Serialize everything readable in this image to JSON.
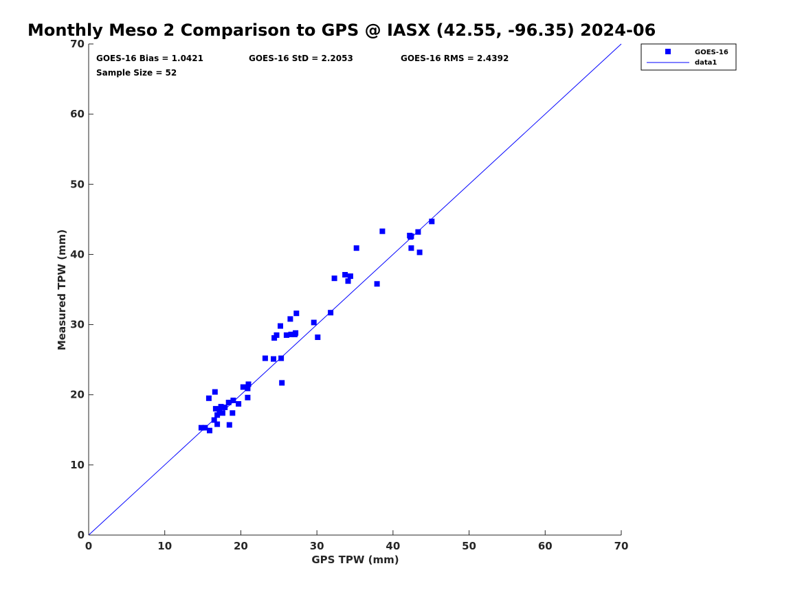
{
  "chart_data": {
    "type": "scatter",
    "title": "Monthly Meso 2 Comparison to GPS @ IASX (42.55, -96.35) 2024-06",
    "xlabel": "GPS TPW (mm)",
    "ylabel": "Measured TPW (mm)",
    "xlim": [
      0,
      70
    ],
    "ylim": [
      0,
      70
    ],
    "xticks": [
      "0",
      "10",
      "20",
      "30",
      "40",
      "50",
      "60",
      "70"
    ],
    "yticks": [
      "0",
      "10",
      "20",
      "30",
      "40",
      "50",
      "60",
      "70"
    ],
    "grid": false,
    "legend_position": "top-right",
    "legend": [
      "GOES-16",
      "data1"
    ],
    "stats": {
      "bias": "GOES-16 Bias = 1.0421",
      "std": "GOES-16 StD = 2.2053",
      "rms": "GOES-16 RMS = 2.4392",
      "sample": "Sample Size = 52"
    },
    "series": [
      {
        "name": "GOES-16",
        "marker": "square",
        "color": "#0000ff",
        "points": [
          [
            14.8,
            15.3
          ],
          [
            15.3,
            15.3
          ],
          [
            15.9,
            14.9
          ],
          [
            15.8,
            19.5
          ],
          [
            16.5,
            16.4
          ],
          [
            16.6,
            20.4
          ],
          [
            16.7,
            18.0
          ],
          [
            16.9,
            17.1
          ],
          [
            16.9,
            15.8
          ],
          [
            17.2,
            17.6
          ],
          [
            17.4,
            18.3
          ],
          [
            17.6,
            17.4
          ],
          [
            17.9,
            18.2
          ],
          [
            18.4,
            18.9
          ],
          [
            18.5,
            15.7
          ],
          [
            18.9,
            17.4
          ],
          [
            19.0,
            19.2
          ],
          [
            19.7,
            18.7
          ],
          [
            20.3,
            21.1
          ],
          [
            20.9,
            20.9
          ],
          [
            20.9,
            19.6
          ],
          [
            21.0,
            21.5
          ],
          [
            23.2,
            25.2
          ],
          [
            24.3,
            25.1
          ],
          [
            24.4,
            28.1
          ],
          [
            24.7,
            28.5
          ],
          [
            25.2,
            29.8
          ],
          [
            25.3,
            25.2
          ],
          [
            25.4,
            21.7
          ],
          [
            26.0,
            28.5
          ],
          [
            26.5,
            30.8
          ],
          [
            26.6,
            28.6
          ],
          [
            27.1,
            28.6
          ],
          [
            27.3,
            31.6
          ],
          [
            27.2,
            28.8
          ],
          [
            29.6,
            30.3
          ],
          [
            30.1,
            28.2
          ],
          [
            31.8,
            31.7
          ],
          [
            32.3,
            36.6
          ],
          [
            33.7,
            37.1
          ],
          [
            34.1,
            36.2
          ],
          [
            34.4,
            36.9
          ],
          [
            35.2,
            40.9
          ],
          [
            37.9,
            35.8
          ],
          [
            38.6,
            43.3
          ],
          [
            42.2,
            42.7
          ],
          [
            42.4,
            42.6
          ],
          [
            42.4,
            40.9
          ],
          [
            43.3,
            43.2
          ],
          [
            43.5,
            40.3
          ],
          [
            45.1,
            44.7
          ],
          [
            42.3,
            42.5
          ]
        ]
      },
      {
        "name": "data1",
        "type": "line",
        "color": "#0000ff",
        "points": [
          [
            0,
            0
          ],
          [
            70,
            70
          ]
        ]
      }
    ]
  }
}
